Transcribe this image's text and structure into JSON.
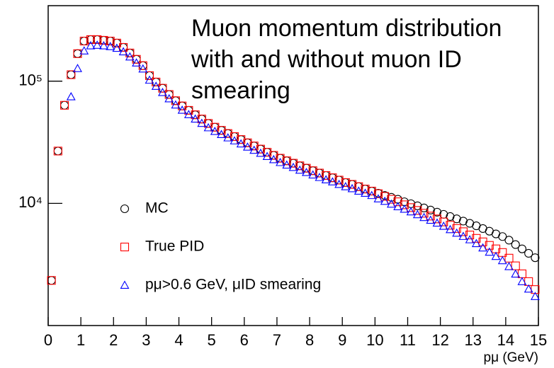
{
  "chart_data": {
    "type": "scatter",
    "title": "Muon momentum distribution with and without muon ID smearing",
    "x_label": "pμ (GeV)",
    "xlim": [
      0,
      15
    ],
    "xticks": [
      0,
      1,
      2,
      3,
      4,
      5,
      6,
      7,
      8,
      9,
      10,
      11,
      12,
      13,
      14,
      15
    ],
    "ylim": [
      1000,
      415000
    ],
    "yticks": [
      {
        "value": 10000,
        "label": "10⁴"
      },
      {
        "value": 100000,
        "label": "10⁵"
      }
    ],
    "log_y": true,
    "grid": false,
    "legend": "lower-left",
    "x": [
      0.1,
      0.3,
      0.5,
      0.7,
      0.9,
      1.1,
      1.3,
      1.5,
      1.7,
      1.9,
      2.1,
      2.3,
      2.5,
      2.7,
      2.9,
      3.1,
      3.3,
      3.5,
      3.7,
      3.9,
      4.1,
      4.3,
      4.5,
      4.7,
      4.9,
      5.1,
      5.3,
      5.5,
      5.7,
      5.9,
      6.1,
      6.3,
      6.5,
      6.7,
      6.9,
      7.1,
      7.3,
      7.5,
      7.7,
      7.9,
      8.1,
      8.3,
      8.5,
      8.7,
      8.9,
      9.1,
      9.3,
      9.5,
      9.7,
      9.9,
      10.1,
      10.3,
      10.5,
      10.7,
      10.9,
      11.1,
      11.3,
      11.5,
      11.7,
      11.9,
      12.1,
      12.3,
      12.5,
      12.7,
      12.9,
      13.1,
      13.3,
      13.5,
      13.7,
      13.9,
      14.1,
      14.3,
      14.5,
      14.7,
      14.9
    ],
    "series": [
      {
        "name": "MC",
        "color": "#000000",
        "marker": "circle",
        "values": [
          2340,
          26800,
          63500,
          113000,
          168000,
          213000,
          219000,
          219000,
          216000,
          213000,
          205000,
          189000,
          170000,
          151000,
          134000,
          111000,
          98400,
          87500,
          77800,
          69200,
          62700,
          57700,
          53100,
          49000,
          45100,
          42000,
          39600,
          37300,
          35200,
          33300,
          31300,
          29500,
          27800,
          26200,
          24700,
          23400,
          22300,
          21300,
          20300,
          19400,
          18500,
          17700,
          16900,
          16200,
          15500,
          14800,
          14300,
          13700,
          13100,
          12600,
          12100,
          11600,
          11200,
          10800,
          10300,
          9930,
          9550,
          9170,
          8810,
          8470,
          8130,
          7800,
          7470,
          7160,
          6860,
          6550,
          6220,
          5920,
          5620,
          5350,
          5000,
          4600,
          4240,
          3900,
          3590
        ]
      },
      {
        "name": "True PID",
        "color": "#ff0000",
        "marker": "square",
        "values": [
          2340,
          26800,
          63500,
          113000,
          168000,
          213000,
          219000,
          219000,
          216000,
          213000,
          205000,
          189000,
          170000,
          151000,
          134000,
          111000,
          98400,
          87500,
          77800,
          69200,
          62700,
          57700,
          53100,
          49000,
          45100,
          42000,
          39600,
          37300,
          35200,
          33300,
          31300,
          29500,
          27800,
          26200,
          24700,
          23400,
          22300,
          21300,
          20300,
          19400,
          18500,
          17700,
          16900,
          16200,
          15500,
          14800,
          14300,
          13700,
          13100,
          12600,
          12000,
          11400,
          10800,
          10300,
          9730,
          9230,
          8750,
          8300,
          7870,
          7460,
          7050,
          6620,
          6230,
          5860,
          5510,
          5170,
          4840,
          4530,
          4240,
          3960,
          3560,
          3080,
          2650,
          2290,
          1970
        ]
      },
      {
        "name": "pμ>0.6 GeV, μID smearing",
        "color": "#0000ff",
        "marker": "triangle",
        "values": [
          null,
          null,
          null,
          74600,
          127000,
          177000,
          195000,
          197000,
          195000,
          192000,
          186000,
          174000,
          158000,
          141000,
          126000,
          102000,
          90800,
          80800,
          71800,
          63900,
          57900,
          53300,
          49000,
          45200,
          41600,
          38800,
          36600,
          34400,
          32500,
          30700,
          28900,
          27200,
          25700,
          24200,
          22800,
          21600,
          20600,
          19700,
          18700,
          17900,
          17100,
          16300,
          15600,
          15000,
          14300,
          13700,
          13200,
          12600,
          12100,
          11600,
          10900,
          10400,
          9860,
          9400,
          8960,
          8530,
          8090,
          7670,
          7280,
          6900,
          6500,
          6100,
          5710,
          5370,
          5040,
          4690,
          4320,
          3990,
          3680,
          3400,
          3040,
          2640,
          2290,
          1990,
          1730
        ]
      }
    ]
  }
}
